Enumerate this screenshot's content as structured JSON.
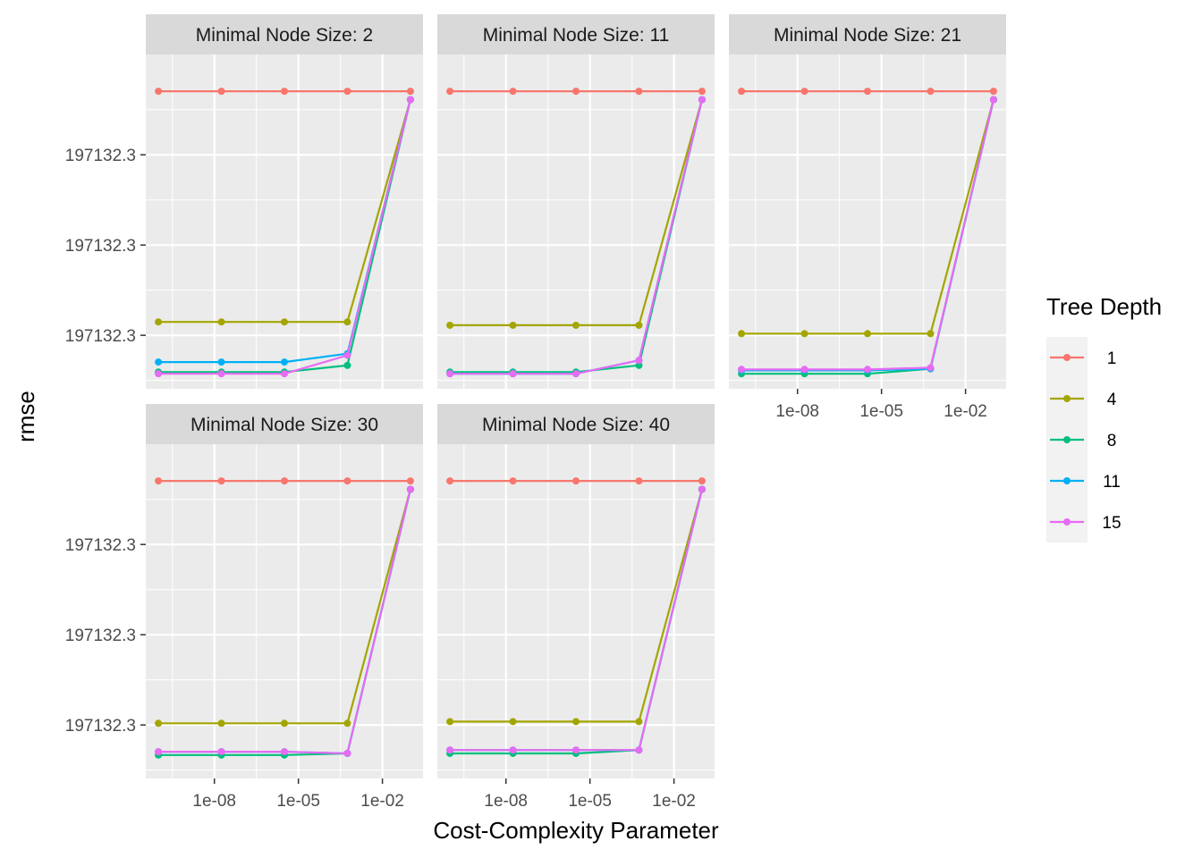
{
  "chart_data": {
    "type": "line",
    "xlabel": "Cost-Complexity Parameter",
    "ylabel": "rmse",
    "x_scale": "log10",
    "x_values": [
      1e-10,
      1.78e-08,
      3.16e-06,
      0.000562,
      0.1
    ],
    "x_ticks": [
      {
        "value": 1e-08,
        "label": "1e-08"
      },
      {
        "value": 1e-05,
        "label": "1e-05"
      },
      {
        "value": 0.01,
        "label": "1e-02"
      }
    ],
    "x_range_log10": [
      -10.45,
      -0.55
    ],
    "y_range": [
      0.0,
      1.0
    ],
    "y_ticks": [
      {
        "value": 0.7,
        "label": "197132.3"
      },
      {
        "value": 0.43,
        "label": "197132.3"
      },
      {
        "value": 0.16,
        "label": "197132.3"
      }
    ],
    "legend": {
      "title": "Tree Depth",
      "placement": "right",
      "entries": [
        {
          "label": "1",
          "color": "#F8766D"
        },
        {
          "label": "4",
          "color": "#A3A500"
        },
        {
          "label": "8",
          "color": "#00BF7D"
        },
        {
          "label": "11",
          "color": "#00B0F6"
        },
        {
          "label": "15",
          "color": "#E76BF3"
        }
      ]
    },
    "panels": [
      {
        "strip": "Minimal Node Size: 2",
        "series": [
          {
            "depth": "1",
            "values": [
              0.89,
              0.89,
              0.89,
              0.89,
              0.89
            ]
          },
          {
            "depth": "4",
            "values": [
              0.2,
              0.2,
              0.2,
              0.2,
              0.865
            ]
          },
          {
            "depth": "8",
            "values": [
              0.05,
              0.05,
              0.05,
              0.07,
              0.865
            ]
          },
          {
            "depth": "11",
            "values": [
              0.08,
              0.08,
              0.08,
              0.105,
              0.865
            ]
          },
          {
            "depth": "15",
            "values": [
              0.045,
              0.045,
              0.045,
              0.1,
              0.865
            ]
          }
        ]
      },
      {
        "strip": "Minimal Node Size: 11",
        "series": [
          {
            "depth": "1",
            "values": [
              0.89,
              0.89,
              0.89,
              0.89,
              0.89
            ]
          },
          {
            "depth": "4",
            "values": [
              0.19,
              0.19,
              0.19,
              0.19,
              0.865
            ]
          },
          {
            "depth": "8",
            "values": [
              0.05,
              0.05,
              0.05,
              0.07,
              0.865
            ]
          },
          {
            "depth": "11",
            "values": [
              0.045,
              0.045,
              0.045,
              0.085,
              0.865
            ]
          },
          {
            "depth": "15",
            "values": [
              0.045,
              0.045,
              0.045,
              0.085,
              0.865
            ]
          }
        ]
      },
      {
        "strip": "Minimal Node Size: 21",
        "series": [
          {
            "depth": "1",
            "values": [
              0.89,
              0.89,
              0.89,
              0.89,
              0.89
            ]
          },
          {
            "depth": "4",
            "values": [
              0.165,
              0.165,
              0.165,
              0.165,
              0.865
            ]
          },
          {
            "depth": "8",
            "values": [
              0.045,
              0.045,
              0.045,
              0.06,
              0.865
            ]
          },
          {
            "depth": "11",
            "values": [
              0.055,
              0.055,
              0.055,
              0.06,
              0.865
            ]
          },
          {
            "depth": "15",
            "values": [
              0.058,
              0.058,
              0.058,
              0.063,
              0.865
            ]
          }
        ]
      },
      {
        "strip": "Minimal Node Size: 30",
        "series": [
          {
            "depth": "1",
            "values": [
              0.89,
              0.89,
              0.89,
              0.89,
              0.89
            ]
          },
          {
            "depth": "4",
            "values": [
              0.165,
              0.165,
              0.165,
              0.165,
              0.865
            ]
          },
          {
            "depth": "8",
            "values": [
              0.07,
              0.07,
              0.07,
              0.075,
              0.865
            ]
          },
          {
            "depth": "11",
            "values": [
              0.08,
              0.08,
              0.08,
              0.075,
              0.865
            ]
          },
          {
            "depth": "15",
            "values": [
              0.08,
              0.08,
              0.08,
              0.075,
              0.865
            ]
          }
        ]
      },
      {
        "strip": "Minimal Node Size: 40",
        "series": [
          {
            "depth": "1",
            "values": [
              0.89,
              0.89,
              0.89,
              0.89,
              0.89
            ]
          },
          {
            "depth": "4",
            "values": [
              0.17,
              0.17,
              0.17,
              0.17,
              0.865
            ]
          },
          {
            "depth": "8",
            "values": [
              0.075,
              0.075,
              0.075,
              0.085,
              0.865
            ]
          },
          {
            "depth": "11",
            "values": [
              0.085,
              0.085,
              0.085,
              0.085,
              0.865
            ]
          },
          {
            "depth": "15",
            "values": [
              0.085,
              0.085,
              0.085,
              0.085,
              0.865
            ]
          }
        ]
      }
    ],
    "colors": {
      "panel_background": "#EBEBEB",
      "strip_background": "#D9D9D9",
      "grid": "#FFFFFF",
      "tick": "#333333"
    }
  }
}
